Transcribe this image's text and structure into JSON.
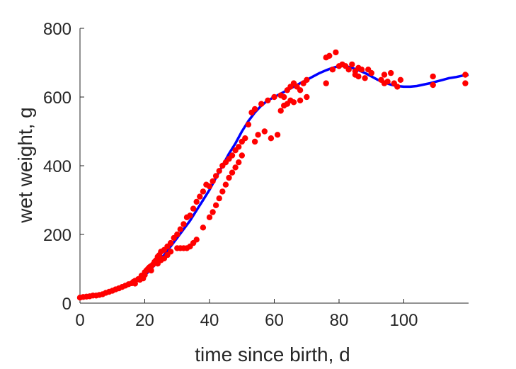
{
  "chart_data": {
    "type": "scatter",
    "xlabel": "time since birth, d",
    "ylabel": "wet weight, g",
    "xlim": [
      0,
      120
    ],
    "ylim": [
      0,
      800
    ],
    "xticks": [
      0,
      20,
      40,
      60,
      80,
      100
    ],
    "yticks": [
      0,
      200,
      400,
      600,
      800
    ],
    "grid": false,
    "series": [
      {
        "type": "scatter",
        "color": "#ff0000",
        "marker": "filled-circle",
        "points": [
          [
            0,
            16
          ],
          [
            1,
            18
          ],
          [
            2,
            19
          ],
          [
            3,
            20
          ],
          [
            4,
            22
          ],
          [
            5,
            22
          ],
          [
            6,
            24
          ],
          [
            7,
            26
          ],
          [
            8,
            30
          ],
          [
            9,
            33
          ],
          [
            10,
            36
          ],
          [
            11,
            40
          ],
          [
            12,
            43
          ],
          [
            13,
            47
          ],
          [
            14,
            51
          ],
          [
            15,
            55
          ],
          [
            16,
            58
          ],
          [
            16.5,
            62
          ],
          [
            17,
            65
          ],
          [
            17,
            57
          ],
          [
            18,
            70
          ],
          [
            18.5,
            68
          ],
          [
            19,
            75
          ],
          [
            19,
            80
          ],
          [
            19.5,
            72
          ],
          [
            20,
            82
          ],
          [
            20,
            90
          ],
          [
            20.5,
            95
          ],
          [
            21,
            100
          ],
          [
            21.5,
            105
          ],
          [
            22,
            108
          ],
          [
            22,
            95
          ],
          [
            22.5,
            112
          ],
          [
            23,
            120
          ],
          [
            23.5,
            125
          ],
          [
            24,
            135
          ],
          [
            24,
            115
          ],
          [
            24.5,
            140
          ],
          [
            25,
            150
          ],
          [
            25,
            125
          ],
          [
            26,
            155
          ],
          [
            26,
            130
          ],
          [
            27,
            165
          ],
          [
            27,
            140
          ],
          [
            28,
            175
          ],
          [
            28,
            150
          ],
          [
            29,
            190
          ],
          [
            30,
            200
          ],
          [
            30,
            160
          ],
          [
            31,
            215
          ],
          [
            31,
            160
          ],
          [
            32,
            230
          ],
          [
            32,
            160
          ],
          [
            33,
            250
          ],
          [
            33,
            160
          ],
          [
            34,
            255
          ],
          [
            34,
            165
          ],
          [
            35,
            275
          ],
          [
            35,
            175
          ],
          [
            36,
            295
          ],
          [
            36,
            185
          ],
          [
            37,
            310
          ],
          [
            38,
            325
          ],
          [
            38,
            220
          ],
          [
            39,
            345
          ],
          [
            40,
            340
          ],
          [
            40,
            250
          ],
          [
            41,
            355
          ],
          [
            41,
            265
          ],
          [
            42,
            370
          ],
          [
            42,
            285
          ],
          [
            43,
            385
          ],
          [
            43,
            305
          ],
          [
            44,
            400
          ],
          [
            44,
            325
          ],
          [
            45,
            410
          ],
          [
            45,
            345
          ],
          [
            46,
            420
          ],
          [
            46,
            365
          ],
          [
            47,
            430
          ],
          [
            47,
            380
          ],
          [
            48,
            445
          ],
          [
            48,
            395
          ],
          [
            49,
            455
          ],
          [
            49,
            410
          ],
          [
            50,
            470
          ],
          [
            50,
            430
          ],
          [
            51,
            480
          ],
          [
            52,
            520
          ],
          [
            53,
            555
          ],
          [
            54,
            470
          ],
          [
            54,
            565
          ],
          [
            55,
            490
          ],
          [
            56,
            580
          ],
          [
            57,
            500
          ],
          [
            58,
            590
          ],
          [
            59,
            480
          ],
          [
            60,
            600
          ],
          [
            61,
            490
          ],
          [
            62,
            560
          ],
          [
            62,
            605
          ],
          [
            63,
            600
          ],
          [
            63,
            575
          ],
          [
            64,
            620
          ],
          [
            64,
            580
          ],
          [
            65,
            630
          ],
          [
            65,
            590
          ],
          [
            66,
            640
          ],
          [
            66,
            585
          ],
          [
            67,
            630
          ],
          [
            68,
            590
          ],
          [
            68,
            620
          ],
          [
            69,
            640
          ],
          [
            70,
            600
          ],
          [
            70,
            650
          ],
          [
            76,
            640
          ],
          [
            76,
            715
          ],
          [
            77,
            720
          ],
          [
            78,
            680
          ],
          [
            79,
            730
          ],
          [
            80,
            690
          ],
          [
            81,
            695
          ],
          [
            82,
            690
          ],
          [
            83,
            680
          ],
          [
            84,
            695
          ],
          [
            85,
            675
          ],
          [
            85,
            665
          ],
          [
            86,
            660
          ],
          [
            86,
            685
          ],
          [
            87,
            680
          ],
          [
            88,
            655
          ],
          [
            89,
            680
          ],
          [
            90,
            670
          ],
          [
            93,
            650
          ],
          [
            94,
            640
          ],
          [
            94,
            665
          ],
          [
            95,
            645
          ],
          [
            96,
            670
          ],
          [
            97,
            640
          ],
          [
            98,
            630
          ],
          [
            99,
            650
          ],
          [
            109,
            635
          ],
          [
            109,
            660
          ],
          [
            119,
            640
          ],
          [
            119,
            665
          ]
        ]
      },
      {
        "type": "line",
        "color": "#0000ff",
        "points": [
          [
            20,
            80
          ],
          [
            22,
            100
          ],
          [
            24,
            120
          ],
          [
            26,
            140
          ],
          [
            28,
            165
          ],
          [
            30,
            190
          ],
          [
            32,
            215
          ],
          [
            34,
            240
          ],
          [
            36,
            270
          ],
          [
            38,
            300
          ],
          [
            40,
            330
          ],
          [
            42,
            365
          ],
          [
            44,
            400
          ],
          [
            46,
            435
          ],
          [
            48,
            465
          ],
          [
            50,
            500
          ],
          [
            52,
            530
          ],
          [
            54,
            555
          ],
          [
            56,
            575
          ],
          [
            58,
            590
          ],
          [
            60,
            600
          ],
          [
            62,
            610
          ],
          [
            64,
            620
          ],
          [
            66,
            630
          ],
          [
            68,
            640
          ],
          [
            70,
            650
          ],
          [
            72,
            660
          ],
          [
            74,
            670
          ],
          [
            76,
            678
          ],
          [
            78,
            685
          ],
          [
            80,
            690
          ],
          [
            82,
            690
          ],
          [
            84,
            685
          ],
          [
            86,
            678
          ],
          [
            88,
            670
          ],
          [
            90,
            660
          ],
          [
            92,
            650
          ],
          [
            94,
            642
          ],
          [
            96,
            636
          ],
          [
            98,
            632
          ],
          [
            100,
            630
          ],
          [
            102,
            630
          ],
          [
            104,
            632
          ],
          [
            106,
            636
          ],
          [
            108,
            640
          ],
          [
            110,
            645
          ],
          [
            112,
            650
          ],
          [
            114,
            655
          ],
          [
            116,
            658
          ],
          [
            118,
            662
          ],
          [
            120,
            665
          ]
        ]
      }
    ]
  }
}
